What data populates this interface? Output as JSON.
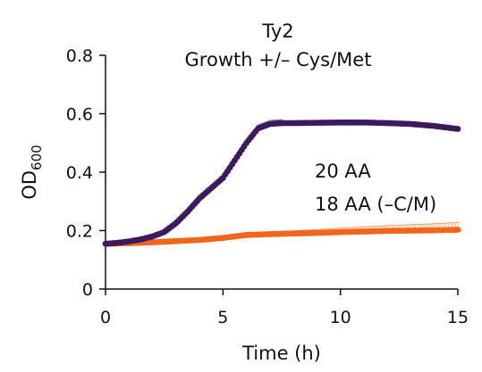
{
  "chart_data": {
    "type": "scatter",
    "title": "Ty2",
    "subtitle": "Growth +/– Cys/Met",
    "xlabel": "Time (h)",
    "ylabel_main": "OD",
    "ylabel_sub": "600",
    "xlim": [
      0,
      15
    ],
    "ylim": [
      0,
      0.8
    ],
    "xticks": [
      0,
      5,
      10,
      15
    ],
    "xtick_labels": [
      "0",
      "5",
      "10",
      "15"
    ],
    "yticks": [
      0,
      0.2,
      0.4,
      0.6,
      0.8
    ],
    "ytick_labels": [
      "0",
      "0.2",
      "0.4",
      "0.6",
      "0.8"
    ],
    "grid": false,
    "error_bars": true,
    "legend_placement": "inside, right of center",
    "series": [
      {
        "name": "20 AA",
        "color": "#3b1a5e",
        "points": [
          [
            0,
            0.155
          ],
          [
            0.5,
            0.158
          ],
          [
            1,
            0.163
          ],
          [
            1.5,
            0.17
          ],
          [
            2,
            0.18
          ],
          [
            2.5,
            0.195
          ],
          [
            3,
            0.225
          ],
          [
            3.5,
            0.265
          ],
          [
            4,
            0.31
          ],
          [
            4.5,
            0.345
          ],
          [
            5,
            0.38
          ],
          [
            5.5,
            0.44
          ],
          [
            6,
            0.5
          ],
          [
            6.5,
            0.55
          ],
          [
            7,
            0.565
          ],
          [
            7.5,
            0.568
          ],
          [
            8,
            0.568
          ],
          [
            9,
            0.569
          ],
          [
            10,
            0.57
          ],
          [
            11,
            0.57
          ],
          [
            12,
            0.568
          ],
          [
            13,
            0.565
          ],
          [
            14,
            0.558
          ],
          [
            15,
            0.548
          ]
        ]
      },
      {
        "name": "18 AA (–C/M)",
        "color": "#f2661b",
        "points": [
          [
            0,
            0.155
          ],
          [
            1,
            0.157
          ],
          [
            2,
            0.16
          ],
          [
            3,
            0.164
          ],
          [
            4,
            0.168
          ],
          [
            5,
            0.175
          ],
          [
            6,
            0.185
          ],
          [
            7,
            0.188
          ],
          [
            8,
            0.19
          ],
          [
            9,
            0.192
          ],
          [
            10,
            0.195
          ],
          [
            11,
            0.197
          ],
          [
            12,
            0.199
          ],
          [
            13,
            0.2
          ],
          [
            14,
            0.201
          ],
          [
            15,
            0.203
          ]
        ]
      }
    ]
  }
}
